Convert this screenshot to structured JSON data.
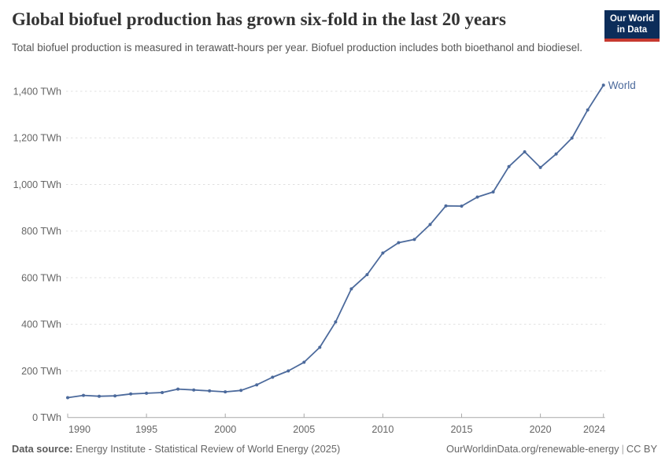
{
  "header": {
    "title": "Global biofuel production has grown six-fold in the last 20 years",
    "subtitle": "Total biofuel production is measured in terawatt-hours per year. Biofuel production includes both bioethanol and biodiesel.",
    "logo": {
      "line1": "Our World",
      "line2": "in Data",
      "bg_color": "#0C2D5A",
      "bar_color": "#C6392F"
    }
  },
  "chart_data": {
    "type": "line",
    "title": "Global biofuel production has grown six-fold in the last 20 years",
    "subtitle": "Total biofuel production is measured in terawatt-hours per year. Biofuel production includes both bioethanol and biodiesel.",
    "xlabel": "",
    "ylabel": "",
    "x": [
      1990,
      1991,
      1992,
      1993,
      1994,
      1995,
      1996,
      1997,
      1998,
      1999,
      2000,
      2001,
      2002,
      2003,
      2004,
      2005,
      2006,
      2007,
      2008,
      2009,
      2010,
      2011,
      2012,
      2013,
      2014,
      2015,
      2016,
      2017,
      2018,
      2019,
      2020,
      2021,
      2022,
      2023,
      2024
    ],
    "series": [
      {
        "name": "World",
        "color": "#4C6A9C",
        "values": [
          85,
          95,
          91,
          93,
          101,
          104,
          107,
          122,
          118,
          114,
          110,
          116,
          140,
          173,
          200,
          237,
          301,
          410,
          552,
          613,
          706,
          750,
          764,
          828,
          908,
          907,
          946,
          968,
          1077,
          1140,
          1073,
          1131,
          1199,
          1320,
          1426
        ]
      }
    ],
    "ylim": [
      0,
      1400
    ],
    "ytick_step": 200,
    "ytick_suffix": " TWh",
    "ytick_labels": [
      "0 TWh",
      "200 TWh",
      "400 TWh",
      "600 TWh",
      "800 TWh",
      "1,000 TWh",
      "1,200 TWh",
      "1,400 TWh"
    ],
    "xticks": [
      1990,
      1995,
      2000,
      2005,
      2010,
      2015,
      2020,
      2024
    ],
    "grid": "horizontal-dashed",
    "legend_position": "end-of-line-label"
  },
  "footer": {
    "source_label": "Data source:",
    "source_text": "Energy Institute - Statistical Review of World Energy (2025)",
    "link_text": "OurWorldinData.org/renewable-energy",
    "divider": "|",
    "license_text": "CC BY"
  }
}
